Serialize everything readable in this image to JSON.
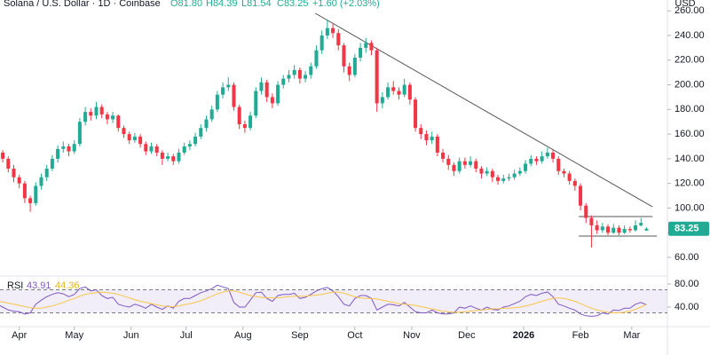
{
  "header": {
    "symbol": "Solana / U.S. Dollar · 1D · Coinbase",
    "ohlc": [
      "O81.80",
      "H84.39",
      "L81.54",
      "C83.25"
    ],
    "change": "+1.60 (+2.03%)"
  },
  "chart_data": [
    {
      "type": "candlestick",
      "currency": "USD",
      "up_color": "#22ab94",
      "down_color": "#f23645",
      "grid": false,
      "xlim": [
        0.5,
        121.8
      ],
      "ylim": [
        45.6,
        268.8
      ],
      "yticks": [
        {
          "value": 60,
          "label": "60.00"
        },
        {
          "value": 80,
          "label": "80.00"
        },
        {
          "value": 100,
          "label": "100.00"
        },
        {
          "value": 120,
          "label": "120.00"
        },
        {
          "value": 140,
          "label": "140.00"
        },
        {
          "value": 160,
          "label": "160.00"
        },
        {
          "value": 180,
          "label": "180.00"
        },
        {
          "value": 200,
          "label": "200.00"
        },
        {
          "value": 220,
          "label": "220.00"
        },
        {
          "value": 240,
          "label": "240.00"
        },
        {
          "value": 260,
          "label": "260.00"
        }
      ],
      "xticks": [
        {
          "value": 4,
          "label": "Apr"
        },
        {
          "value": 14,
          "label": "May"
        },
        {
          "value": 24.33,
          "label": "Jun"
        },
        {
          "value": 34.33,
          "label": "Jul"
        },
        {
          "value": 44.67,
          "label": "Aug"
        },
        {
          "value": 55,
          "label": "Sep"
        },
        {
          "value": 65,
          "label": "Oct"
        },
        {
          "value": 75.33,
          "label": "Nov"
        },
        {
          "value": 85.33,
          "label": "Dec"
        },
        {
          "value": 95.67,
          "label": "2026"
        },
        {
          "value": 106,
          "label": "Feb"
        },
        {
          "value": 115.33,
          "label": "Mar"
        }
      ],
      "last_price": {
        "value": 83.25,
        "label": "83.25"
      },
      "trendlines": [
        {
          "from": [
            57.8,
            258
          ],
          "to": [
            119.1,
            101
          ]
        },
        {
          "from": [
            105.7,
            93.1
          ],
          "to": [
            119.1,
            93.1
          ]
        },
        {
          "from": [
            105.7,
            77.3
          ],
          "to": [
            119.9,
            77.3
          ]
        }
      ],
      "candles": [
        [
          148,
          152,
          142,
          145
        ],
        [
          145,
          147,
          137,
          140
        ],
        [
          140,
          142,
          129,
          132
        ],
        [
          132,
          135,
          121,
          125
        ],
        [
          125,
          127,
          116,
          120
        ],
        [
          120,
          122,
          104,
          108
        ],
        [
          108,
          110,
          97,
          104
        ],
        [
          104,
          121,
          102,
          118
        ],
        [
          118,
          128,
          115,
          125
        ],
        [
          125,
          135,
          122,
          132
        ],
        [
          132,
          143,
          130,
          140
        ],
        [
          140,
          151,
          137,
          148
        ],
        [
          148,
          154,
          145,
          150
        ],
        [
          150,
          152,
          142,
          146
        ],
        [
          146,
          155,
          144,
          152
        ],
        [
          152,
          173,
          150,
          170
        ],
        [
          170,
          182,
          167,
          178
        ],
        [
          178,
          181,
          171,
          175
        ],
        [
          175,
          186,
          172,
          182
        ],
        [
          182,
          184,
          173,
          176
        ],
        [
          176,
          178,
          168,
          172
        ],
        [
          172,
          178,
          169,
          175
        ],
        [
          175,
          176,
          162,
          165
        ],
        [
          165,
          167,
          157,
          160
        ],
        [
          160,
          162,
          152,
          155
        ],
        [
          155,
          161,
          153,
          158
        ],
        [
          158,
          160,
          149,
          152
        ],
        [
          152,
          154,
          143,
          146
        ],
        [
          146,
          153,
          144,
          150
        ],
        [
          150,
          152,
          142,
          145
        ],
        [
          145,
          147,
          135,
          140
        ],
        [
          140,
          145,
          138,
          142
        ],
        [
          142,
          144,
          135,
          138
        ],
        [
          138,
          148,
          136,
          145
        ],
        [
          145,
          153,
          143,
          150
        ],
        [
          150,
          155,
          147,
          152
        ],
        [
          152,
          161,
          150,
          158
        ],
        [
          158,
          168,
          156,
          165
        ],
        [
          165,
          175,
          162,
          172
        ],
        [
          172,
          183,
          170,
          180
        ],
        [
          180,
          195,
          178,
          192
        ],
        [
          192,
          202,
          189,
          198
        ],
        [
          198,
          206,
          195,
          200
        ],
        [
          200,
          202,
          179,
          182
        ],
        [
          182,
          184,
          164,
          168
        ],
        [
          168,
          171,
          161,
          165
        ],
        [
          165,
          178,
          163,
          175
        ],
        [
          175,
          198,
          173,
          195
        ],
        [
          195,
          206,
          192,
          202
        ],
        [
          202,
          204,
          186,
          190
        ],
        [
          190,
          193,
          181,
          185
        ],
        [
          185,
          203,
          183,
          200
        ],
        [
          200,
          208,
          197,
          205
        ],
        [
          205,
          212,
          202,
          208
        ],
        [
          208,
          216,
          205,
          212
        ],
        [
          212,
          214,
          201,
          205
        ],
        [
          205,
          211,
          202,
          208
        ],
        [
          208,
          218,
          205,
          215
        ],
        [
          215,
          232,
          213,
          228
        ],
        [
          228,
          244,
          225,
          240
        ],
        [
          240,
          253,
          237,
          246
        ],
        [
          246,
          250,
          238,
          242
        ],
        [
          242,
          245,
          228,
          232
        ],
        [
          232,
          234,
          210,
          215
        ],
        [
          215,
          218,
          203,
          208
        ],
        [
          208,
          225,
          206,
          222
        ],
        [
          222,
          234,
          219,
          230
        ],
        [
          230,
          238,
          226,
          234
        ],
        [
          234,
          236,
          224,
          228
        ],
        [
          228,
          230,
          178,
          185
        ],
        [
          185,
          194,
          181,
          190
        ],
        [
          190,
          202,
          188,
          198
        ],
        [
          198,
          203,
          192,
          195
        ],
        [
          195,
          198,
          188,
          192
        ],
        [
          192,
          205,
          190,
          200
        ],
        [
          200,
          202,
          184,
          188
        ],
        [
          188,
          190,
          162,
          165
        ],
        [
          165,
          168,
          156,
          160
        ],
        [
          160,
          163,
          151,
          155
        ],
        [
          155,
          162,
          152,
          158
        ],
        [
          158,
          160,
          142,
          145
        ],
        [
          145,
          148,
          137,
          140
        ],
        [
          140,
          143,
          131,
          135
        ],
        [
          135,
          137,
          126,
          130
        ],
        [
          130,
          141,
          128,
          138
        ],
        [
          138,
          141,
          132,
          135
        ],
        [
          135,
          142,
          133,
          138
        ],
        [
          138,
          140,
          129,
          132
        ],
        [
          132,
          134,
          124,
          128
        ],
        [
          128,
          133,
          126,
          130
        ],
        [
          130,
          132,
          121,
          125
        ],
        [
          125,
          127,
          119,
          122
        ],
        [
          122,
          127,
          120,
          124
        ],
        [
          124,
          128,
          122,
          125
        ],
        [
          125,
          131,
          123,
          128
        ],
        [
          128,
          133,
          126,
          130
        ],
        [
          130,
          139,
          128,
          136
        ],
        [
          136,
          143,
          134,
          140
        ],
        [
          140,
          142,
          135,
          138
        ],
        [
          138,
          146,
          136,
          142
        ],
        [
          142,
          149,
          140,
          145
        ],
        [
          145,
          147,
          137,
          140
        ],
        [
          140,
          142,
          127,
          130
        ],
        [
          130,
          132,
          125,
          128
        ],
        [
          128,
          130,
          119,
          122
        ],
        [
          122,
          124,
          114,
          118
        ],
        [
          118,
          120,
          98,
          102
        ],
        [
          102,
          104,
          88,
          92
        ],
        [
          92,
          94,
          68,
          86
        ],
        [
          86,
          90,
          79,
          82
        ],
        [
          82,
          88,
          80,
          85
        ],
        [
          85,
          87,
          78,
          80
        ],
        [
          80,
          87,
          79,
          84
        ],
        [
          84,
          86,
          78,
          80
        ],
        [
          80,
          86,
          79,
          83
        ],
        [
          83,
          85,
          80,
          82
        ],
        [
          82,
          90,
          81,
          86
        ],
        [
          86,
          92,
          85,
          88
        ],
        [
          81.8,
          84.39,
          81.54,
          83.25
        ]
      ]
    },
    {
      "type": "line",
      "title": "RSI",
      "readout": [
        "43.91",
        "44.36"
      ],
      "ylim": [
        6.2,
        92.3
      ],
      "yticks": [
        {
          "value": 40,
          "label": "40.00"
        },
        {
          "value": 80,
          "label": "80.00"
        }
      ],
      "bands": [
        30,
        70
      ],
      "band_color": "#7e57c2",
      "series": [
        {
          "color": "#7e57c2",
          "values": [
            45,
            40,
            35,
            33,
            32,
            28,
            30,
            45,
            52,
            58,
            62,
            65,
            63,
            58,
            62,
            72,
            75,
            68,
            70,
            60,
            55,
            57,
            45,
            42,
            40,
            45,
            42,
            38,
            45,
            40,
            36,
            42,
            38,
            50,
            55,
            55,
            60,
            65,
            68,
            72,
            78,
            75,
            72,
            48,
            40,
            40,
            52,
            65,
            66,
            55,
            50,
            60,
            62,
            62,
            64,
            55,
            57,
            62,
            68,
            72,
            74,
            68,
            58,
            45,
            42,
            55,
            60,
            60,
            55,
            35,
            40,
            45,
            44,
            42,
            48,
            40,
            32,
            30,
            30,
            35,
            30,
            28,
            28,
            30,
            40,
            38,
            42,
            38,
            35,
            40,
            36,
            35,
            40,
            42,
            46,
            50,
            58,
            62,
            60,
            64,
            66,
            58,
            45,
            42,
            38,
            35,
            28,
            25,
            24,
            25,
            30,
            28,
            35,
            34,
            38,
            38,
            45,
            48,
            43.91
          ]
        },
        {
          "color": "#f7c548",
          "values": [
            50,
            49,
            47,
            45,
            43,
            41,
            39,
            38,
            38,
            40,
            42,
            45,
            48,
            52,
            55,
            59,
            62,
            64,
            65,
            66,
            65,
            64,
            62,
            59,
            56,
            53,
            50,
            48,
            46,
            44,
            42,
            41,
            41,
            42,
            44,
            46,
            48,
            51,
            55,
            59,
            63,
            66,
            68,
            68,
            66,
            63,
            60,
            58,
            57,
            56,
            56,
            56,
            57,
            58,
            59,
            59,
            59,
            60,
            61,
            62,
            64,
            66,
            66,
            64,
            61,
            58,
            56,
            55,
            55,
            54,
            52,
            50,
            48,
            46,
            45,
            44,
            43,
            41,
            39,
            37,
            35,
            33,
            32,
            31,
            31,
            32,
            33,
            34,
            35,
            36,
            37,
            37,
            38,
            38,
            39,
            40,
            42,
            44,
            47,
            50,
            53,
            55,
            56,
            55,
            53,
            50,
            46,
            42,
            38,
            35,
            33,
            31,
            30,
            30,
            31,
            33,
            36,
            40,
            44.36
          ]
        }
      ]
    }
  ]
}
